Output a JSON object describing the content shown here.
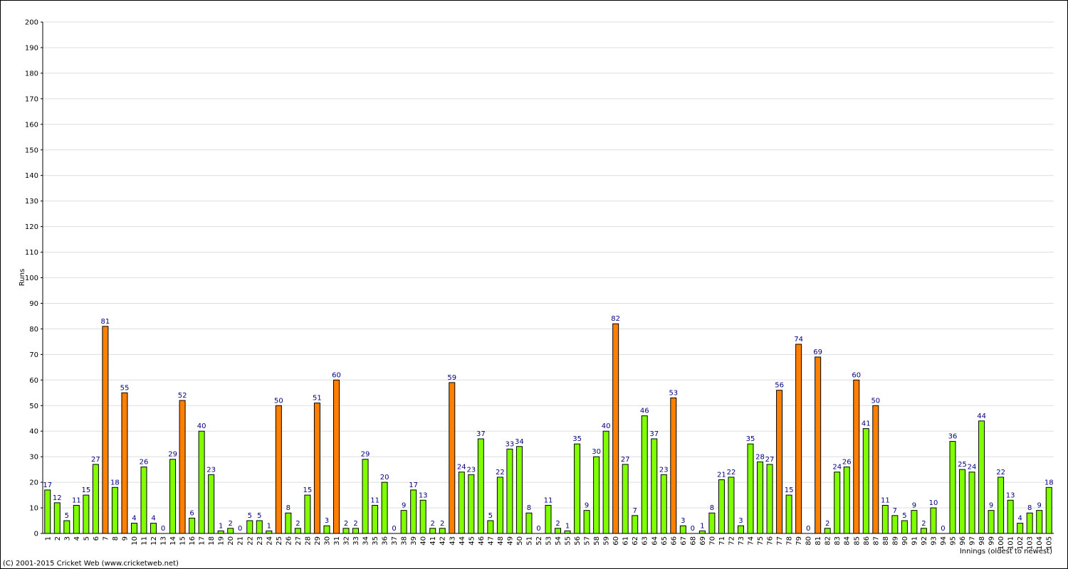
{
  "chart_data": {
    "type": "bar",
    "y_label": "Runs",
    "x_label": "Innings (oldest to newest)",
    "footer": "(C) 2001-2015 Cricket Web (www.cricketweb.net)",
    "categories": [
      "1",
      "2",
      "3",
      "4",
      "5",
      "6",
      "7",
      "8",
      "9",
      "10",
      "11",
      "12",
      "13",
      "14",
      "15",
      "16",
      "17",
      "18",
      "19",
      "20",
      "21",
      "22",
      "23",
      "24",
      "25",
      "26",
      "27",
      "28",
      "29",
      "30",
      "31",
      "32",
      "33",
      "34",
      "35",
      "36",
      "37",
      "38",
      "39",
      "40",
      "41",
      "42",
      "43",
      "44",
      "45",
      "46",
      "47",
      "48",
      "49",
      "50",
      "51",
      "52",
      "53",
      "54",
      "55",
      "56",
      "57",
      "58",
      "59",
      "60",
      "61",
      "62",
      "63",
      "64",
      "65",
      "66",
      "67",
      "68",
      "69",
      "70",
      "71",
      "72",
      "73",
      "74",
      "75",
      "76",
      "77",
      "78",
      "79",
      "80",
      "81",
      "82",
      "83",
      "84",
      "85",
      "86",
      "87",
      "88",
      "89",
      "90",
      "91",
      "92",
      "93",
      "94",
      "95",
      "96",
      "97",
      "98",
      "99",
      "100",
      "101",
      "102",
      "103",
      "104",
      "105"
    ],
    "values": [
      17,
      12,
      5,
      11,
      15,
      27,
      81,
      18,
      55,
      4,
      26,
      4,
      0,
      29,
      52,
      6,
      40,
      23,
      1,
      2,
      0,
      5,
      5,
      1,
      50,
      8,
      2,
      15,
      51,
      3,
      60,
      2,
      2,
      29,
      11,
      20,
      0,
      9,
      17,
      13,
      2,
      2,
      59,
      24,
      23,
      37,
      5,
      22,
      33,
      34,
      8,
      0,
      11,
      2,
      1,
      35,
      9,
      30,
      40,
      82,
      27,
      7,
      46,
      37,
      23,
      53,
      3,
      0,
      1,
      8,
      21,
      22,
      3,
      35,
      28,
      27,
      56,
      15,
      74,
      0,
      69,
      2,
      24,
      26,
      60,
      41,
      50,
      11,
      7,
      5,
      9,
      2,
      10,
      0,
      36,
      25,
      24,
      44,
      9,
      22,
      13,
      4,
      8,
      9,
      18
    ],
    "colors": [
      "#80ff00",
      "#80ff00",
      "#80ff00",
      "#80ff00",
      "#80ff00",
      "#80ff00",
      "#ff8000",
      "#80ff00",
      "#ff8000",
      "#80ff00",
      "#80ff00",
      "#80ff00",
      "#80ff00",
      "#80ff00",
      "#ff8000",
      "#80ff00",
      "#80ff00",
      "#80ff00",
      "#80ff00",
      "#80ff00",
      "#80ff00",
      "#80ff00",
      "#80ff00",
      "#80ff00",
      "#ff8000",
      "#80ff00",
      "#80ff00",
      "#80ff00",
      "#ff8000",
      "#80ff00",
      "#ff8000",
      "#80ff00",
      "#80ff00",
      "#80ff00",
      "#80ff00",
      "#80ff00",
      "#80ff00",
      "#80ff00",
      "#80ff00",
      "#80ff00",
      "#80ff00",
      "#80ff00",
      "#ff8000",
      "#80ff00",
      "#80ff00",
      "#80ff00",
      "#80ff00",
      "#80ff00",
      "#80ff00",
      "#80ff00",
      "#80ff00",
      "#80ff00",
      "#80ff00",
      "#80ff00",
      "#80ff00",
      "#80ff00",
      "#80ff00",
      "#80ff00",
      "#80ff00",
      "#ff8000",
      "#80ff00",
      "#80ff00",
      "#80ff00",
      "#80ff00",
      "#80ff00",
      "#ff8000",
      "#80ff00",
      "#80ff00",
      "#80ff00",
      "#80ff00",
      "#80ff00",
      "#80ff00",
      "#80ff00",
      "#80ff00",
      "#80ff00",
      "#80ff00",
      "#ff8000",
      "#80ff00",
      "#ff8000",
      "#80ff00",
      "#ff8000",
      "#80ff00",
      "#80ff00",
      "#80ff00",
      "#ff8000",
      "#80ff00",
      "#ff8000",
      "#80ff00",
      "#80ff00",
      "#80ff00",
      "#80ff00",
      "#80ff00",
      "#80ff00",
      "#80ff00",
      "#80ff00",
      "#80ff00",
      "#80ff00",
      "#80ff00",
      "#80ff00",
      "#80ff00",
      "#80ff00",
      "#80ff00",
      "#80ff00",
      "#80ff00",
      "#80ff00"
    ],
    "label_color": "#000080",
    "ylim": [
      0,
      200
    ],
    "yticks": [
      0,
      10,
      20,
      30,
      40,
      50,
      60,
      70,
      80,
      90,
      100,
      110,
      120,
      130,
      140,
      150,
      160,
      170,
      180,
      190,
      200
    ],
    "grid": true
  }
}
